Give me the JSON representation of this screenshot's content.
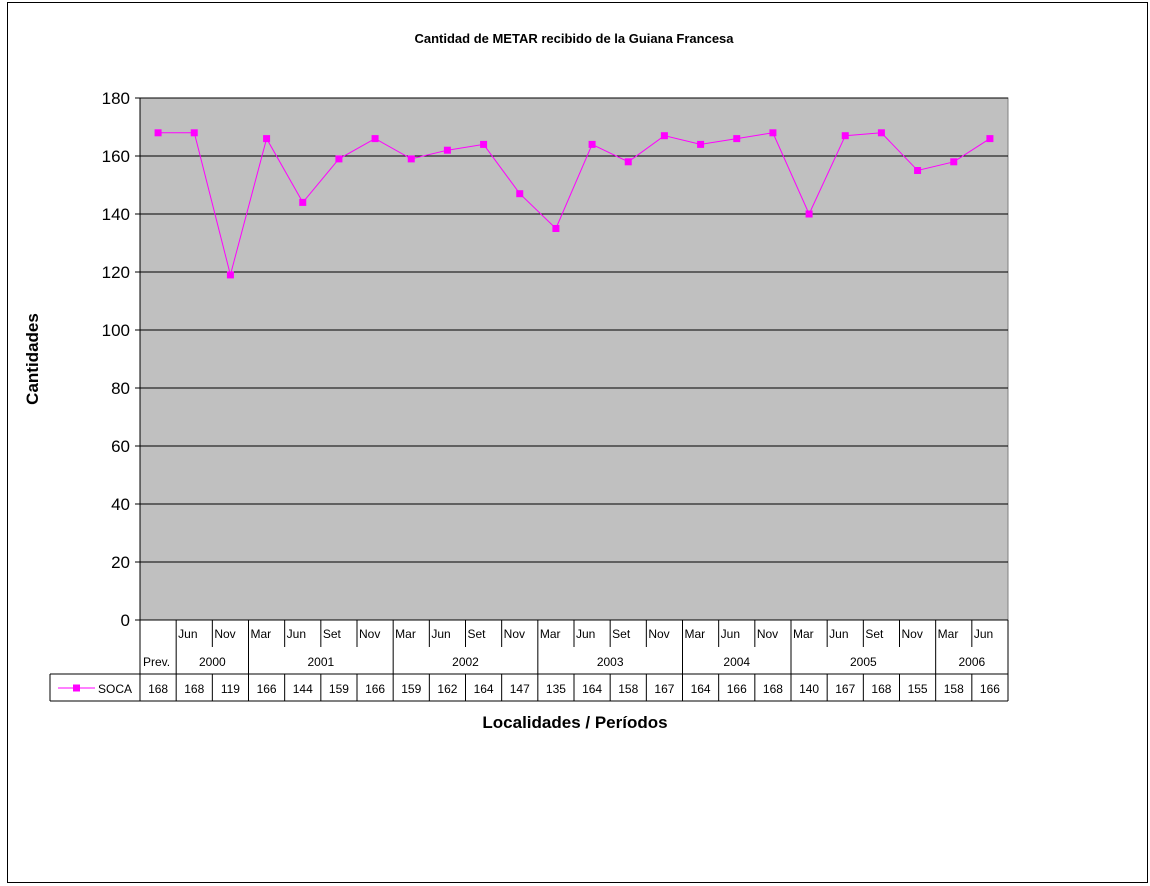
{
  "chart_data": {
    "type": "line",
    "title": "Cantidad de METAR recibido de la Guiana Francesa",
    "xlabel": "Localidades / Períodos",
    "ylabel": "Cantidades",
    "ylim": [
      0,
      180
    ],
    "yticks": [
      0,
      20,
      40,
      60,
      80,
      100,
      120,
      140,
      160,
      180
    ],
    "grid": true,
    "legend": "data-table-left",
    "plot_background": "#c0c0c0",
    "line_color": "#ff00ff",
    "categories": [
      {
        "month": "",
        "year_label": "Prev."
      },
      {
        "month": "Jun",
        "year": "2000"
      },
      {
        "month": "Nov",
        "year": "2000"
      },
      {
        "month": "Mar",
        "year": "2001"
      },
      {
        "month": "Jun",
        "year": "2001"
      },
      {
        "month": "Set",
        "year": "2001"
      },
      {
        "month": "Nov",
        "year": "2001"
      },
      {
        "month": "Mar",
        "year": "2002"
      },
      {
        "month": "Jun",
        "year": "2002"
      },
      {
        "month": "Set",
        "year": "2002"
      },
      {
        "month": "Nov",
        "year": "2002"
      },
      {
        "month": "Mar",
        "year": "2003"
      },
      {
        "month": "Jun",
        "year": "2003"
      },
      {
        "month": "Set",
        "year": "2003"
      },
      {
        "month": "Nov",
        "year": "2003"
      },
      {
        "month": "Mar",
        "year": "2004"
      },
      {
        "month": "Jun",
        "year": "2004"
      },
      {
        "month": "Nov",
        "year": "2004"
      },
      {
        "month": "Mar",
        "year": "2005"
      },
      {
        "month": "Jun",
        "year": "2005"
      },
      {
        "month": "Set",
        "year": "2005"
      },
      {
        "month": "Nov",
        "year": "2005"
      },
      {
        "month": "Mar",
        "year": "2006"
      },
      {
        "month": "Jun",
        "year": "2006"
      }
    ],
    "year_groups": [
      {
        "label": "Prev.",
        "span": 1
      },
      {
        "label": "2000",
        "span": 2
      },
      {
        "label": "2001",
        "span": 4
      },
      {
        "label": "2002",
        "span": 4
      },
      {
        "label": "2003",
        "span": 4
      },
      {
        "label": "2004",
        "span": 3
      },
      {
        "label": "2005",
        "span": 4
      },
      {
        "label": "2006",
        "span": 2
      }
    ],
    "series": [
      {
        "name": "SOCA",
        "values": [
          168,
          168,
          119,
          166,
          144,
          159,
          166,
          159,
          162,
          164,
          147,
          135,
          164,
          158,
          167,
          164,
          166,
          168,
          140,
          167,
          168,
          155,
          158,
          166
        ]
      }
    ]
  }
}
